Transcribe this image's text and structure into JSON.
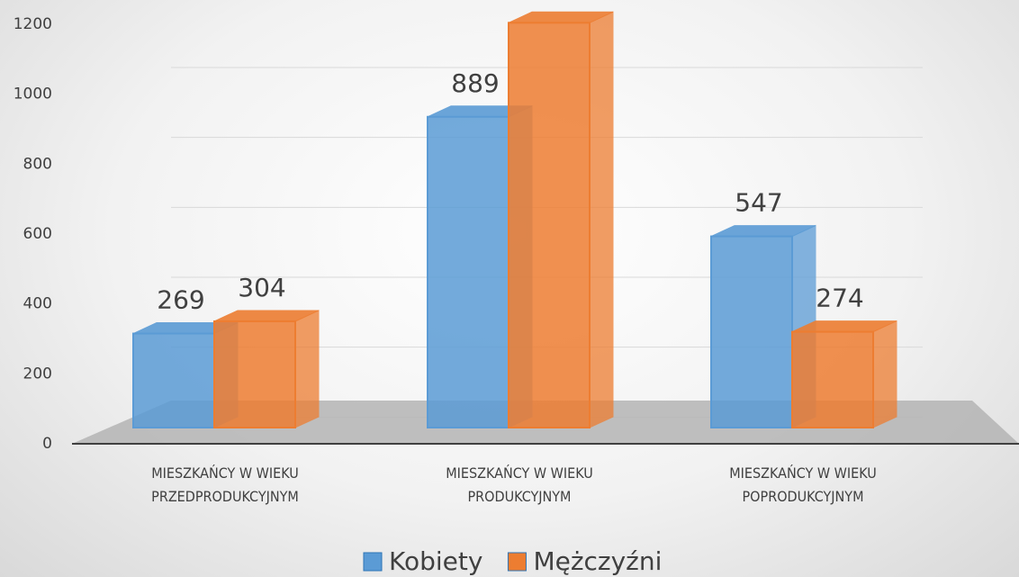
{
  "chart_data": {
    "type": "bar",
    "categories": [
      "MIESZKAŃCY W WIEKU PRZEDPRODUKCYJNYM",
      "MIESZKAŃCY W WIEKU PRODUKCYJNYM",
      "MIESZKAŃCY W WIEKU POPRODUKCYJNYM"
    ],
    "series": [
      {
        "name": "Kobiety",
        "color": "#5b9bd5",
        "values": [
          269,
          889,
          547
        ]
      },
      {
        "name": "Mężczyźni",
        "color": "#ed7d31",
        "values": [
          304,
          1158,
          274
        ]
      }
    ],
    "ylim": [
      0,
      1200
    ],
    "yticks": [
      0,
      200,
      400,
      600,
      800,
      1000,
      1200
    ],
    "grid": true,
    "legend": "bottom"
  }
}
